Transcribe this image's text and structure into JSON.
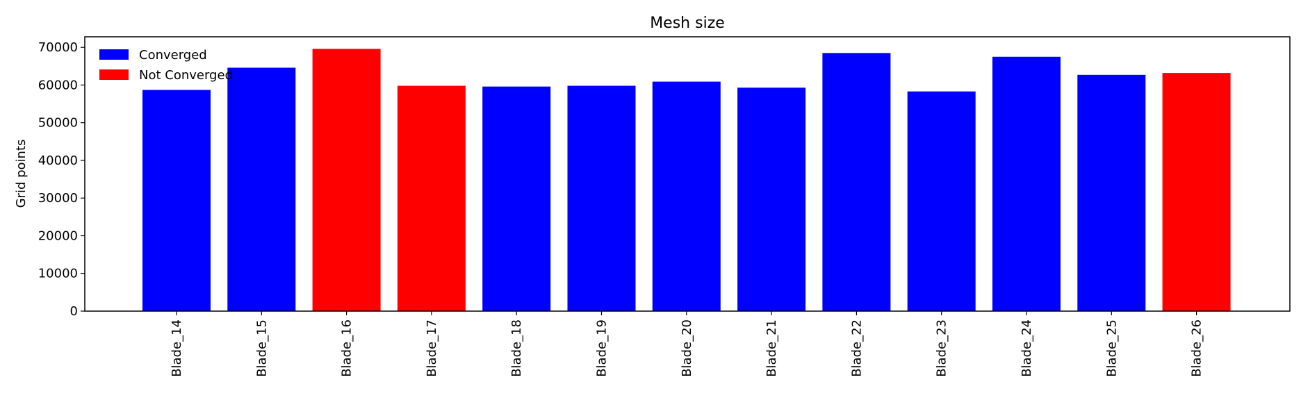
{
  "chart_data": {
    "type": "bar",
    "title": "Mesh size",
    "xlabel": "",
    "ylabel": "Grid points",
    "ylim": [
      0,
      72800
    ],
    "yticks": [
      0,
      10000,
      20000,
      30000,
      40000,
      50000,
      60000,
      70000
    ],
    "grid": false,
    "legend": {
      "placement": "top-left",
      "entries": [
        {
          "label": "Converged",
          "color": "#0000ff"
        },
        {
          "label": "Not Converged",
          "color": "#ff0000"
        }
      ]
    },
    "categories": [
      "Blade_14",
      "Blade_15",
      "Blade_16",
      "Blade_17",
      "Blade_18",
      "Blade_19",
      "Blade_20",
      "Blade_21",
      "Blade_22",
      "Blade_23",
      "Blade_24",
      "Blade_25",
      "Blade_26"
    ],
    "values": [
      58700,
      64600,
      69600,
      59800,
      59600,
      59800,
      60900,
      59300,
      68500,
      58300,
      67500,
      62700,
      63200
    ],
    "status": [
      "Converged",
      "Converged",
      "Not Converged",
      "Not Converged",
      "Converged",
      "Converged",
      "Converged",
      "Converged",
      "Converged",
      "Converged",
      "Converged",
      "Converged",
      "Not Converged"
    ],
    "colors": {
      "Converged": "#0000ff",
      "Not Converged": "#ff0000"
    }
  }
}
